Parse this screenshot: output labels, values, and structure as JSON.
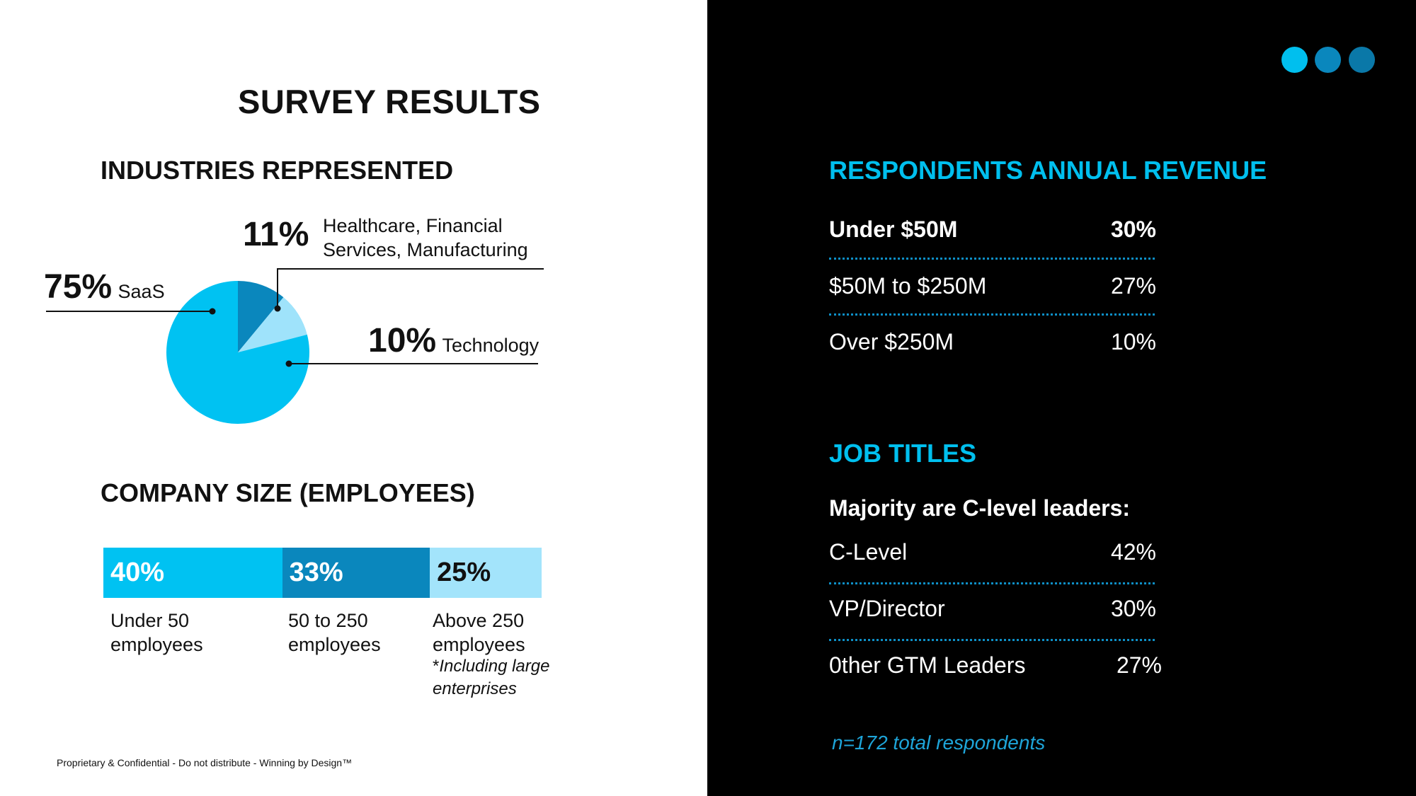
{
  "title": "SURVEY RESULTS",
  "industries": {
    "heading": "INDUSTRIES REPRESENTED",
    "slices": [
      {
        "pct": "75%",
        "label": "SaaS",
        "value": 75,
        "color": "#00c2f2"
      },
      {
        "pct": "11%",
        "label_line1": "Healthcare, Financial",
        "label_line2": "Services, Manufacturing",
        "value": 11,
        "color": "#0a87bd"
      },
      {
        "pct": "10%",
        "label": "Technology",
        "value": 10,
        "color": "#9fe3fb"
      }
    ]
  },
  "company_size": {
    "heading": "COMPANY SIZE (EMPLOYEES)",
    "bars": [
      {
        "pct": "40%",
        "line1": "Under 50",
        "line2": "employees",
        "value": 40,
        "color": "#00c2f2",
        "text_color": "#ffffff"
      },
      {
        "pct": "33%",
        "line1": "50 to 250",
        "line2": "employees",
        "value": 33,
        "color": "#0a87bd",
        "text_color": "#ffffff"
      },
      {
        "pct": "25%",
        "line1": "Above 250",
        "line2": "employees",
        "value": 25,
        "color": "#a3e4fb",
        "text_color": "#111111"
      }
    ],
    "note_star": "*",
    "note_line1": "Including large",
    "note_line2": "enterprises"
  },
  "footer": "Proprietary & Confidential - Do not distribute - Winning by Design™",
  "revenue": {
    "heading": "RESPONDENTS ANNUAL REVENUE",
    "rows": [
      {
        "name": "Under $50M",
        "value": "30%"
      },
      {
        "name": "$50M to $250M",
        "value": "27%"
      },
      {
        "name": "Over $250M",
        "value": "10%"
      }
    ]
  },
  "job_titles": {
    "heading": "JOB TITLES",
    "subheading": "Majority are C-level leaders:",
    "rows": [
      {
        "name": "C-Level",
        "value": "42%"
      },
      {
        "name": "VP/Director",
        "value": "30%"
      },
      {
        "name": "0ther GTM Leaders",
        "value": "27%"
      }
    ]
  },
  "respondents_note": "n=172 total respondents",
  "dot_colors": [
    "#00bfee",
    "#0a87bd",
    "#0a78a8"
  ],
  "accent_color": "#00bfee"
}
